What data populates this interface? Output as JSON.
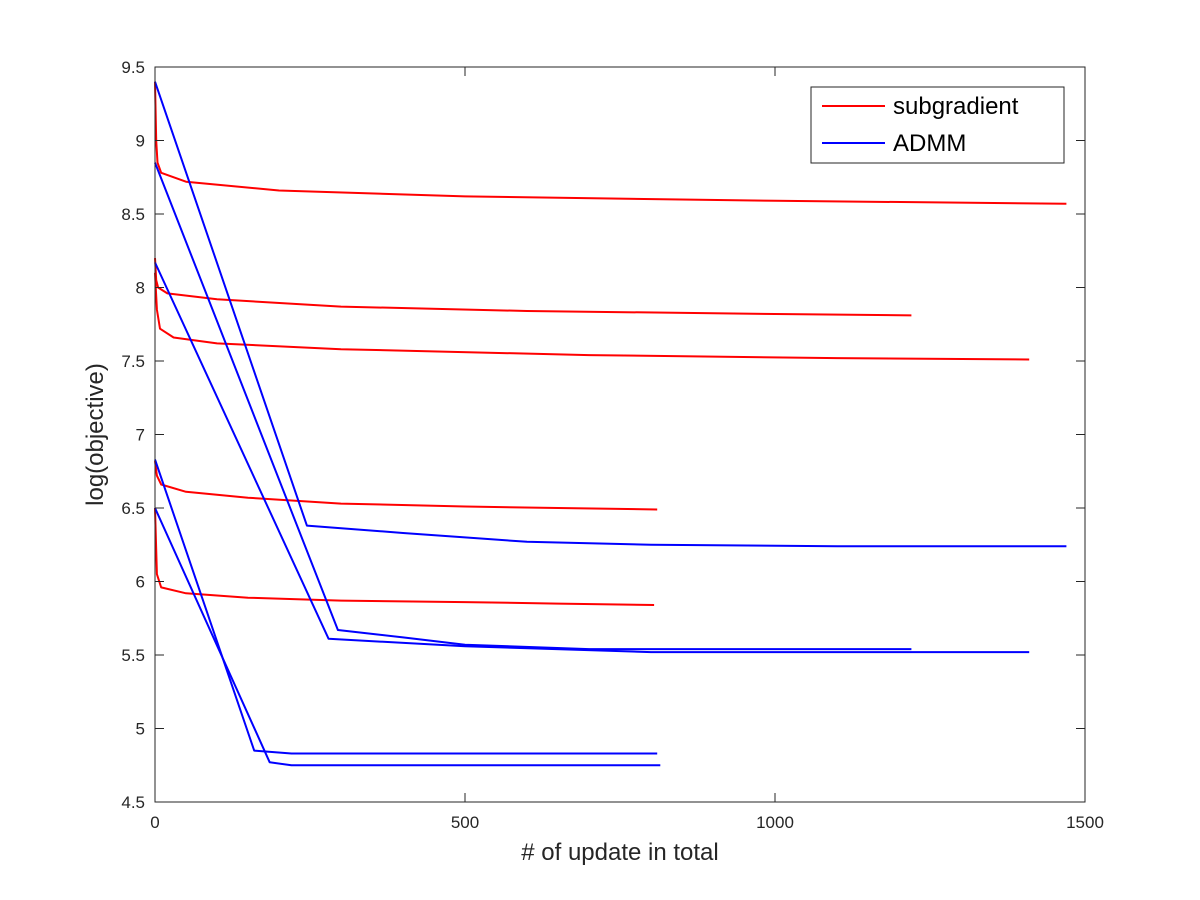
{
  "chart_data": {
    "type": "line",
    "title": "",
    "xlabel": "# of update in total",
    "ylabel": "log(objective)",
    "xlim": [
      0,
      1500
    ],
    "ylim": [
      4.5,
      9.5
    ],
    "xticks": [
      0,
      500,
      1000,
      1500
    ],
    "yticks": [
      4.5,
      5,
      5.5,
      6,
      6.5,
      7,
      7.5,
      8,
      8.5,
      9,
      9.5
    ],
    "xtick_labels": [
      "0",
      "500",
      "1000",
      "1500"
    ],
    "ytick_labels": [
      "4.5",
      "5",
      "5.5",
      "6",
      "6.5",
      "7",
      "7.5",
      "8",
      "8.5",
      "9",
      "9.5"
    ],
    "grid": false,
    "legend_placement": "top-right",
    "legend": [
      {
        "label": "subgradient",
        "color": "#ff0000"
      },
      {
        "label": "ADMM",
        "color": "#0000ff"
      }
    ],
    "series": [
      {
        "group": "subgradient",
        "color": "#ff0000",
        "points": [
          [
            0,
            9.4
          ],
          [
            2,
            9.0
          ],
          [
            4,
            8.85
          ],
          [
            10,
            8.78
          ],
          [
            50,
            8.72
          ],
          [
            200,
            8.66
          ],
          [
            500,
            8.62
          ],
          [
            1000,
            8.59
          ],
          [
            1470,
            8.57
          ]
        ]
      },
      {
        "group": "subgradient",
        "color": "#ff0000",
        "points": [
          [
            0,
            8.2
          ],
          [
            2,
            8.05
          ],
          [
            5,
            8.0
          ],
          [
            20,
            7.96
          ],
          [
            100,
            7.92
          ],
          [
            300,
            7.87
          ],
          [
            600,
            7.84
          ],
          [
            1000,
            7.82
          ],
          [
            1220,
            7.81
          ]
        ]
      },
      {
        "group": "subgradient",
        "color": "#ff0000",
        "points": [
          [
            0,
            8.1
          ],
          [
            3,
            7.85
          ],
          [
            8,
            7.72
          ],
          [
            30,
            7.66
          ],
          [
            100,
            7.62
          ],
          [
            300,
            7.58
          ],
          [
            700,
            7.54
          ],
          [
            1100,
            7.52
          ],
          [
            1410,
            7.51
          ]
        ]
      },
      {
        "group": "subgradient",
        "color": "#ff0000",
        "points": [
          [
            0,
            6.82
          ],
          [
            3,
            6.72
          ],
          [
            10,
            6.66
          ],
          [
            50,
            6.61
          ],
          [
            150,
            6.57
          ],
          [
            300,
            6.53
          ],
          [
            500,
            6.51
          ],
          [
            650,
            6.5
          ],
          [
            810,
            6.49
          ]
        ]
      },
      {
        "group": "subgradient",
        "color": "#ff0000",
        "points": [
          [
            0,
            6.5
          ],
          [
            3,
            6.05
          ],
          [
            10,
            5.96
          ],
          [
            50,
            5.92
          ],
          [
            150,
            5.89
          ],
          [
            300,
            5.87
          ],
          [
            500,
            5.86
          ],
          [
            650,
            5.85
          ],
          [
            805,
            5.84
          ]
        ]
      },
      {
        "group": "ADMM",
        "color": "#0000ff",
        "points": [
          [
            0,
            9.4
          ],
          [
            245,
            6.38
          ],
          [
            400,
            6.33
          ],
          [
            600,
            6.27
          ],
          [
            800,
            6.25
          ],
          [
            1100,
            6.24
          ],
          [
            1470,
            6.24
          ]
        ]
      },
      {
        "group": "ADMM",
        "color": "#0000ff",
        "points": [
          [
            0,
            8.85
          ],
          [
            295,
            5.67
          ],
          [
            400,
            5.62
          ],
          [
            500,
            5.57
          ],
          [
            700,
            5.54
          ],
          [
            1000,
            5.54
          ],
          [
            1220,
            5.54
          ]
        ]
      },
      {
        "group": "ADMM",
        "color": "#0000ff",
        "points": [
          [
            0,
            8.17
          ],
          [
            280,
            5.61
          ],
          [
            500,
            5.56
          ],
          [
            800,
            5.52
          ],
          [
            1100,
            5.52
          ],
          [
            1410,
            5.52
          ]
        ]
      },
      {
        "group": "ADMM",
        "color": "#0000ff",
        "points": [
          [
            0,
            6.83
          ],
          [
            160,
            4.85
          ],
          [
            220,
            4.83
          ],
          [
            500,
            4.83
          ],
          [
            810,
            4.83
          ]
        ]
      },
      {
        "group": "ADMM",
        "color": "#0000ff",
        "points": [
          [
            0,
            6.5
          ],
          [
            185,
            4.77
          ],
          [
            220,
            4.75
          ],
          [
            500,
            4.75
          ],
          [
            815,
            4.75
          ]
        ]
      }
    ]
  }
}
